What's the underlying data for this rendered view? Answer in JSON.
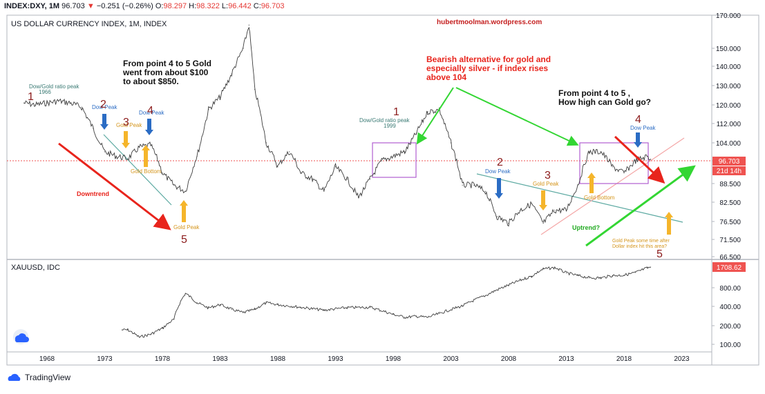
{
  "header": {
    "symbol": "INDEX:DXY, 1M",
    "price": "96.703",
    "change_arrow": "▼",
    "change": "−0.251 (−0.26%)",
    "o_label": "O:",
    "o": "98.297",
    "h_label": "H:",
    "h": "98.322",
    "l_label": "L:",
    "l": "96.442",
    "c_label": "C:",
    "c": "96.703"
  },
  "footer": {
    "brand": "TradingView"
  },
  "colors": {
    "accent_red": "#e53935",
    "price_tag": "#ef5350",
    "arrow_red": "#e8241c",
    "arrow_green": "#33d633",
    "arrow_blue": "#2b6cc4",
    "arrow_orange": "#f5b52b",
    "trend_teal": "#5ba9a1",
    "box_purple": "#b05ed0",
    "label_darkred": "#8b1a1a"
  },
  "annotations": {
    "watermark": "hubertmoolman.wordpress.com",
    "note_4to5_gold": [
      "From point 4 to 5 Gold",
      "went from about $100",
      "to about $850."
    ],
    "bearish_alt": [
      "Bearish alternative for gold and",
      "especially silver - if index rises",
      "above 104"
    ],
    "how_high": [
      "From point 4 to 5 ,",
      "How high can Gold go?"
    ],
    "dow_gold_1966": [
      "Dow/Gold ratio peak",
      "1966"
    ],
    "dow_gold_1999": [
      "Dow/Gold ratio peak",
      "1999"
    ],
    "dow_peak": "Dow Peak",
    "gold_peak": "Gold Peak",
    "gold_bottom": "Gold Bottom",
    "downtrend": "Downtrend",
    "uptrend": "Uptrend?",
    "gold_peak_future": [
      "Gold Peak some time after",
      "Dollar index hit this area?"
    ],
    "n1": "1",
    "n2": "2",
    "n3": "3",
    "n4": "4",
    "n5": "5"
  },
  "chart_data": [
    {
      "type": "line",
      "title": "US DOLLAR CURRENCY INDEX, 1M, INDEX",
      "y_ticks": [
        "170.000",
        "150.000",
        "140.000",
        "130.000",
        "120.000",
        "112.000",
        "104.000",
        "96.000",
        "88.500",
        "82.500",
        "76.500",
        "71.500",
        "66.500"
      ],
      "y_tick_values": [
        170,
        150,
        140,
        130,
        120,
        112,
        104,
        96,
        88.5,
        82.5,
        76.5,
        71.5,
        66.5
      ],
      "last_value": "96.703",
      "countdown": "21d 14h",
      "x": [
        1966,
        1967,
        1968,
        1969,
        1970,
        1971,
        1972,
        1973,
        1974,
        1975,
        1976,
        1977,
        1978,
        1979,
        1980,
        1981,
        1982,
        1983,
        1984,
        1985,
        1985.5,
        1986,
        1987,
        1988,
        1989,
        1990,
        1991,
        1992,
        1993,
        1994,
        1995,
        1996,
        1997,
        1998,
        1999,
        2000,
        2001,
        2002,
        2003,
        2004,
        2005,
        2006,
        2007,
        2008,
        2009,
        2010,
        2011,
        2012,
        2013,
        2014,
        2015,
        2016,
        2017,
        2018,
        2019,
        2020,
        2020.3
      ],
      "values": [
        121,
        120,
        121,
        122,
        121,
        119,
        110,
        100,
        98,
        97,
        102,
        103,
        92,
        88,
        86,
        98,
        118,
        124,
        136,
        150,
        164,
        128,
        104,
        94,
        100,
        92,
        90,
        86,
        94,
        90,
        84,
        90,
        96,
        98,
        100,
        108,
        117,
        118,
        104,
        88,
        88,
        86,
        78,
        76,
        80,
        82,
        76,
        80,
        80,
        88,
        100,
        100,
        94,
        92,
        96,
        98,
        96.703
      ]
    },
    {
      "type": "line",
      "title": "XAUUSD, IDC",
      "y_ticks": [
        "800.00",
        "400.00",
        "200.00",
        "100.00"
      ],
      "y_tick_values": [
        800,
        400,
        200,
        100
      ],
      "last_value": "1708.62",
      "x": [
        1974.5,
        1975,
        1976,
        1977,
        1978,
        1979,
        1980,
        1981,
        1982,
        1983,
        1984,
        1985,
        1986,
        1987,
        1988,
        1990,
        1992,
        1994,
        1996,
        1998,
        1999,
        2000,
        2001,
        2002,
        2004,
        2006,
        2008,
        2010,
        2011,
        2012,
        2013,
        2014,
        2015,
        2016,
        2017,
        2018,
        2019,
        2020,
        2020.3
      ],
      "values": [
        170,
        170,
        130,
        145,
        180,
        250,
        650,
        460,
        380,
        430,
        360,
        320,
        360,
        460,
        430,
        390,
        350,
        385,
        390,
        300,
        270,
        280,
        270,
        310,
        410,
        600,
        880,
        1220,
        1590,
        1670,
        1380,
        1250,
        1150,
        1150,
        1250,
        1270,
        1400,
        1650,
        1708.62
      ]
    }
  ],
  "x_ticks": [
    "1968",
    "1973",
    "1978",
    "1983",
    "1988",
    "1993",
    "1998",
    "2003",
    "2008",
    "2013",
    "2018",
    "2023"
  ],
  "x_tick_values": [
    1968,
    1973,
    1978,
    1983,
    1988,
    1993,
    1998,
    2003,
    2008,
    2013,
    2018,
    2023
  ]
}
